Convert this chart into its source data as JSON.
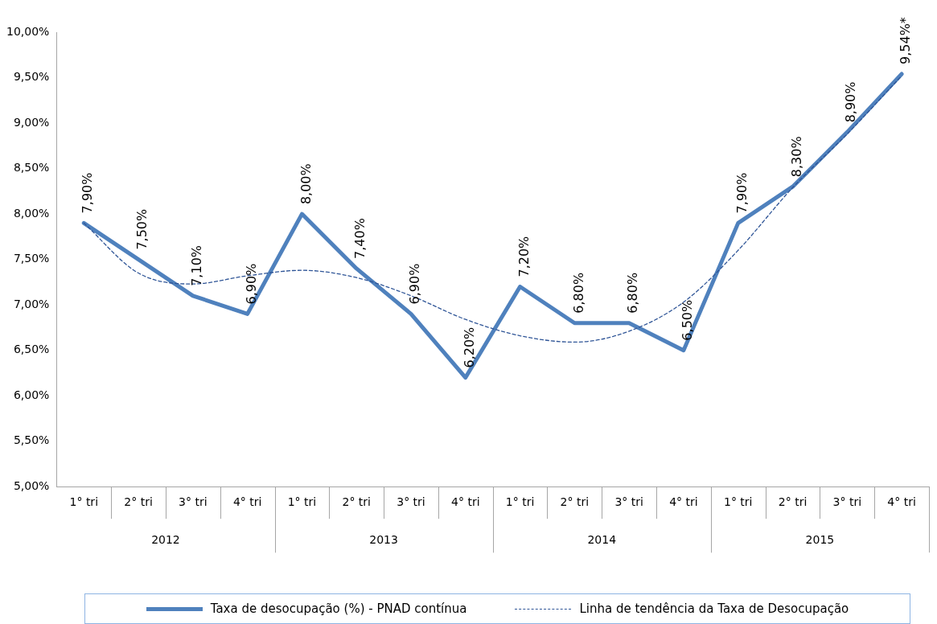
{
  "chart_data": {
    "type": "line",
    "categories": [
      "1° tri",
      "2° tri",
      "3° tri",
      "4° tri",
      "1° tri",
      "2° tri",
      "3° tri",
      "4° tri",
      "1° tri",
      "2° tri",
      "3° tri",
      "4° tri",
      "1° tri",
      "2° tri",
      "3° tri",
      "4° tri"
    ],
    "series": [
      {
        "name": "Taxa de desocupação (%) - PNAD contínua",
        "color": "#4f81bd",
        "line_style": "solid",
        "values": [
          7.9,
          7.5,
          7.1,
          6.9,
          8.0,
          7.4,
          6.9,
          6.2,
          7.2,
          6.8,
          6.8,
          6.5,
          7.9,
          8.3,
          8.9,
          9.54
        ],
        "value_labels": [
          "7,90%",
          "7,50%",
          "7,10%",
          "6,90%",
          "8,00%",
          "7,40%",
          "6,90%",
          "6,20%",
          "7,20%",
          "6,80%",
          "6,80%",
          "6,50%",
          "7,90%",
          "8,30%",
          "8,90%",
          "9,54%*"
        ]
      },
      {
        "name": "Linha de tendência da Taxa de Desocupação",
        "color": "#2f5597",
        "line_style": "dashed",
        "values": [
          7.9,
          7.35,
          7.23,
          7.32,
          7.38,
          7.3,
          7.1,
          6.84,
          6.66,
          6.59,
          6.71,
          7.03,
          7.6,
          8.29,
          8.88,
          9.52
        ]
      }
    ],
    "ylim": [
      5,
      10
    ],
    "yticks": [
      {
        "value": 5,
        "label": "5,00%"
      },
      {
        "value": 5.5,
        "label": "5,50%"
      },
      {
        "value": 6,
        "label": "6,00%"
      },
      {
        "value": 6.5,
        "label": "6,50%"
      },
      {
        "value": 7,
        "label": "7,00%"
      },
      {
        "value": 7.5,
        "label": "7,50%"
      },
      {
        "value": 8,
        "label": "8,00%"
      },
      {
        "value": 8.5,
        "label": "8,50%"
      },
      {
        "value": 9,
        "label": "9,00%"
      },
      {
        "value": 9.5,
        "label": "9,50%"
      },
      {
        "value": 10,
        "label": "10,00%"
      }
    ],
    "annotations": [
      "2012",
      "2013",
      "2014",
      "2015"
    ],
    "grid": false,
    "legend": "bottom",
    "marker": "none"
  }
}
